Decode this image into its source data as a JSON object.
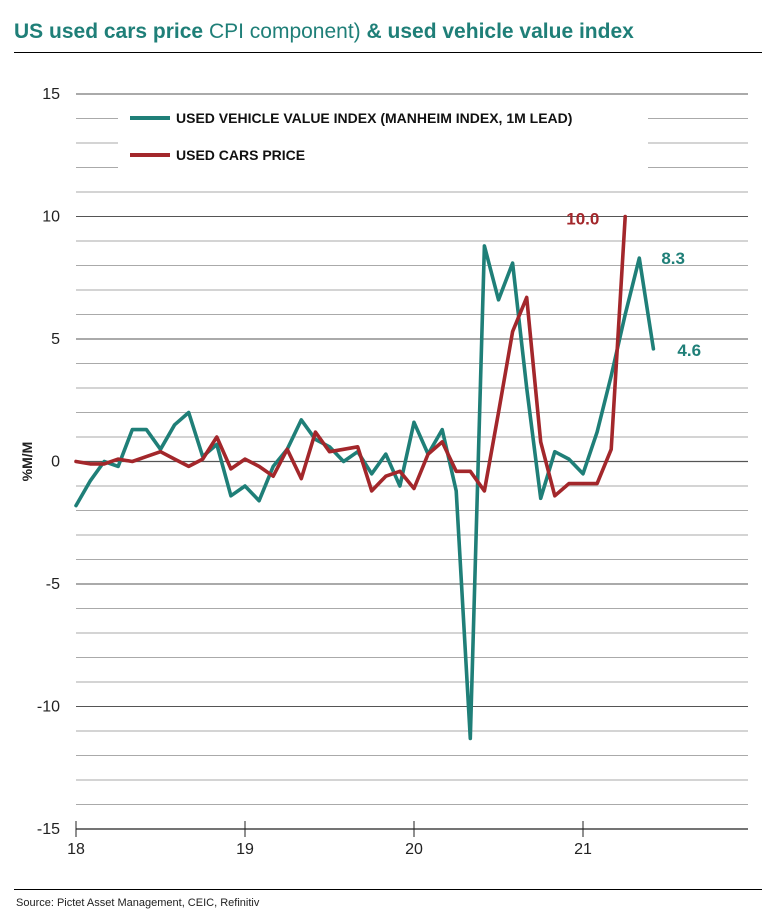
{
  "title": {
    "part1": "US used cars price",
    "part2": "CPI component)",
    "part3": "& used vehicle value index"
  },
  "source": "Source: Pictet Asset Management, CEIC, Refinitiv",
  "chart_data": {
    "type": "line",
    "title": "US used cars price CPI component) & used vehicle value index",
    "ylabel": "%M/M",
    "xlabel": "",
    "ylim": [
      -15,
      15
    ],
    "yticks": [
      15,
      10,
      5,
      0,
      -5,
      -10,
      -15
    ],
    "xlim": [
      18,
      22
    ],
    "xticks": [
      18,
      19,
      20,
      21
    ],
    "legend_position": "top-left",
    "grid": true,
    "series": [
      {
        "name": "USED VEHICLE VALUE INDEX (MANHEIM INDEX, 1M LEAD)",
        "color": "#1f7f78",
        "values": [
          -1.8,
          -0.8,
          0.0,
          -0.2,
          1.3,
          1.3,
          0.5,
          1.5,
          2.0,
          0.2,
          0.7,
          -1.4,
          -1.0,
          -1.6,
          -0.2,
          0.5,
          1.7,
          0.9,
          0.6,
          0.0,
          0.4,
          -0.5,
          0.3,
          -1.0,
          1.6,
          0.3,
          1.3,
          -1.2,
          -11.3,
          8.8,
          6.6,
          8.1,
          3.0,
          -1.5,
          0.4,
          0.1,
          -0.5,
          1.2,
          3.5,
          6.0,
          8.3,
          4.6
        ]
      },
      {
        "name": "USED CARS PRICE",
        "color": "#a3272b",
        "values": [
          0.0,
          -0.1,
          -0.1,
          0.1,
          0.0,
          0.2,
          0.4,
          0.1,
          -0.2,
          0.1,
          1.0,
          -0.3,
          0.1,
          -0.2,
          -0.6,
          0.5,
          -0.7,
          1.2,
          0.4,
          0.5,
          0.6,
          -1.2,
          -0.6,
          -0.4,
          -1.1,
          0.3,
          0.8,
          -0.4,
          -0.4,
          -1.2,
          2.0,
          5.3,
          6.7,
          0.8,
          -1.4,
          -0.9,
          -0.9,
          -0.9,
          0.5,
          10.0
        ]
      }
    ],
    "x_start": 18,
    "step": 0.0833333,
    "annotations": [
      {
        "text": "10.0",
        "series": 1,
        "index": 39
      },
      {
        "text": "8.3",
        "series": 0,
        "index": 40
      },
      {
        "text": "4.6",
        "series": 0,
        "index": 41
      }
    ]
  }
}
